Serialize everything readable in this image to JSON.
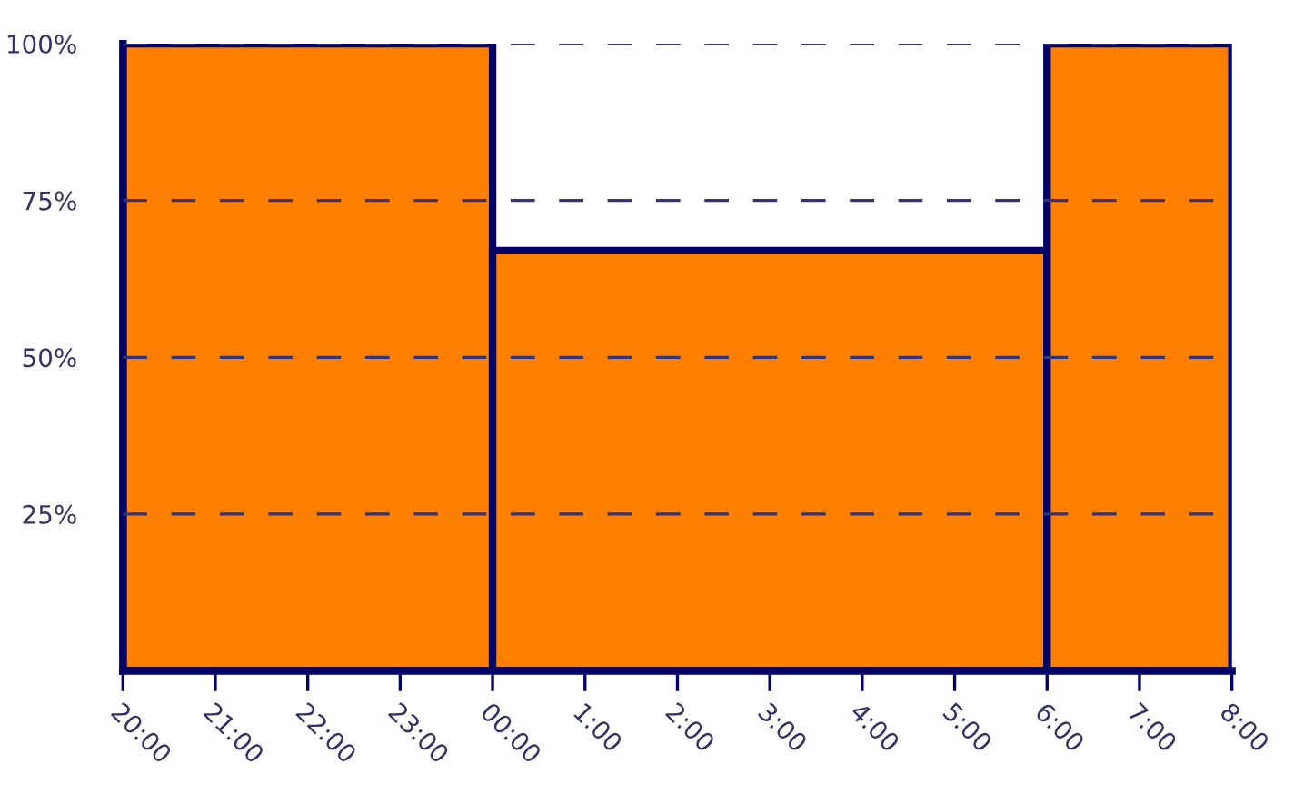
{
  "chart_data": {
    "type": "histogram",
    "bins": [
      "2000-01-01T20:00",
      "2000-01-02T00:00",
      "2000-01-02T06:00",
      "2000-01-02T08:00"
    ],
    "values": [
      100,
      67,
      100
    ],
    "color": "#ff8000",
    "xlim": [
      "2000-01-01T20:00",
      "2000-01-02T08:00"
    ],
    "xticks": [
      {
        "value": "2000-01-01T20:00",
        "label": "20:00"
      },
      {
        "value": "2000-01-01T21:00",
        "label": "21:00"
      },
      {
        "value": "2000-01-01T22:00",
        "label": "22:00"
      },
      {
        "value": "2000-01-01T23:00",
        "label": "23:00"
      },
      {
        "value": "2000-01-02T00:00",
        "label": "00:00"
      },
      {
        "value": "2000-01-02T01:00",
        "label": "1:00"
      },
      {
        "value": "2000-01-02T02:00",
        "label": "2:00"
      },
      {
        "value": "2000-01-02T03:00",
        "label": "3:00"
      },
      {
        "value": "2000-01-02T04:00",
        "label": "4:00"
      },
      {
        "value": "2000-01-02T05:00",
        "label": "5:00"
      },
      {
        "value": "2000-01-02T06:00",
        "label": "6:00"
      },
      {
        "value": "2000-01-02T07:00",
        "label": "7:00"
      },
      {
        "value": "2000-01-02T08:00",
        "label": "8:00"
      }
    ],
    "ylim": [
      0,
      100
    ],
    "yticks": [
      {
        "value": 25,
        "label": "25%"
      },
      {
        "value": 50,
        "label": "50%"
      },
      {
        "value": 75,
        "label": "75%"
      },
      {
        "value": 100,
        "label": "100%"
      }
    ],
    "grid": "y"
  }
}
